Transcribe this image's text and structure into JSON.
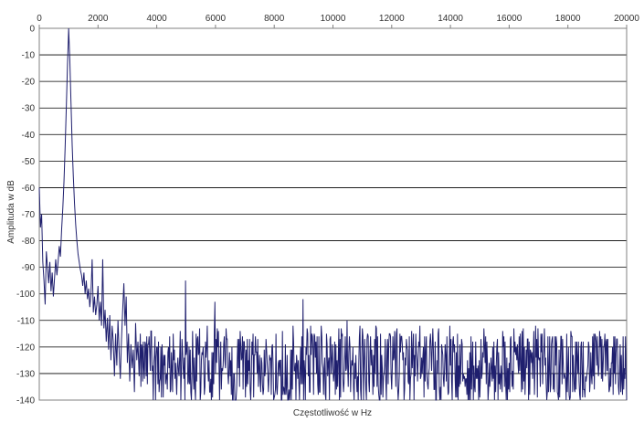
{
  "chart_data": {
    "type": "line",
    "title": "",
    "xlabel": "Częstotliwość w Hz",
    "ylabel": "Amplituda w dB",
    "xlim": [
      0,
      20000
    ],
    "ylim": [
      -140,
      0
    ],
    "x_ticks": [
      0,
      2000,
      4000,
      6000,
      8000,
      10000,
      12000,
      14000,
      16000,
      18000,
      20000
    ],
    "y_ticks": [
      0,
      -10,
      -20,
      -30,
      -40,
      -50,
      -60,
      -70,
      -80,
      -90,
      -100,
      -110,
      -120,
      -130,
      -140
    ],
    "x_tick_position": "top",
    "grid": {
      "horizontal": true,
      "vertical": false
    },
    "legend": "none",
    "series": [
      {
        "color": "#1f1f6e",
        "points": [
          [
            0,
            -60
          ],
          [
            40,
            -75
          ],
          [
            80,
            -70
          ],
          [
            120,
            -88
          ],
          [
            160,
            -95
          ],
          [
            200,
            -104
          ],
          [
            240,
            -84
          ],
          [
            280,
            -90
          ],
          [
            320,
            -96
          ],
          [
            360,
            -88
          ],
          [
            400,
            -99
          ],
          [
            440,
            -92
          ],
          [
            480,
            -101
          ],
          [
            520,
            -94
          ],
          [
            560,
            -87
          ],
          [
            600,
            -93
          ],
          [
            640,
            -88
          ],
          [
            680,
            -82
          ],
          [
            720,
            -86
          ],
          [
            760,
            -76
          ],
          [
            800,
            -68
          ],
          [
            840,
            -58
          ],
          [
            880,
            -45
          ],
          [
            920,
            -30
          ],
          [
            960,
            -14
          ],
          [
            990,
            -4
          ],
          [
            1000,
            0
          ],
          [
            1010,
            -3
          ],
          [
            1040,
            -12
          ],
          [
            1080,
            -28
          ],
          [
            1120,
            -44
          ],
          [
            1160,
            -56
          ],
          [
            1200,
            -66
          ],
          [
            1240,
            -74
          ],
          [
            1280,
            -80
          ],
          [
            1320,
            -85
          ],
          [
            1360,
            -88
          ],
          [
            1400,
            -91
          ],
          [
            1440,
            -93
          ],
          [
            1480,
            -97
          ],
          [
            1520,
            -92
          ],
          [
            1560,
            -100
          ],
          [
            1600,
            -95
          ],
          [
            1640,
            -102
          ],
          [
            1680,
            -98
          ],
          [
            1720,
            -105
          ],
          [
            1760,
            -100
          ],
          [
            1800,
            -87
          ],
          [
            1840,
            -107
          ],
          [
            1880,
            -101
          ],
          [
            1920,
            -108
          ],
          [
            1960,
            -104
          ],
          [
            2000,
            -97
          ],
          [
            2040,
            -110
          ],
          [
            2080,
            -103
          ],
          [
            2120,
            -112
          ],
          [
            2160,
            -87
          ],
          [
            2200,
            -113
          ],
          [
            2240,
            -106
          ],
          [
            2280,
            -118
          ],
          [
            2320,
            -109
          ],
          [
            2360,
            -121
          ],
          [
            2400,
            -108
          ],
          [
            2440,
            -125
          ],
          [
            2480,
            -112
          ],
          [
            2520,
            -118
          ],
          [
            2560,
            -131
          ],
          [
            2600,
            -115
          ],
          [
            2640,
            -127
          ],
          [
            2680,
            -110
          ],
          [
            2720,
            -122
          ],
          [
            2760,
            -132
          ],
          [
            2800,
            -117
          ],
          [
            2840,
            -106
          ],
          [
            2880,
            -96
          ],
          [
            2920,
            -112
          ],
          [
            2960,
            -101
          ],
          [
            3000,
            -126
          ],
          [
            3040,
            -115
          ],
          [
            3080,
            -133
          ],
          [
            3120,
            -119
          ],
          [
            3160,
            -128
          ],
          [
            3200,
            -121
          ],
          [
            3240,
            -137
          ],
          [
            3280,
            -111
          ],
          [
            3320,
            -125
          ],
          [
            3360,
            -118
          ],
          [
            3400,
            -131
          ]
        ]
      }
    ]
  }
}
